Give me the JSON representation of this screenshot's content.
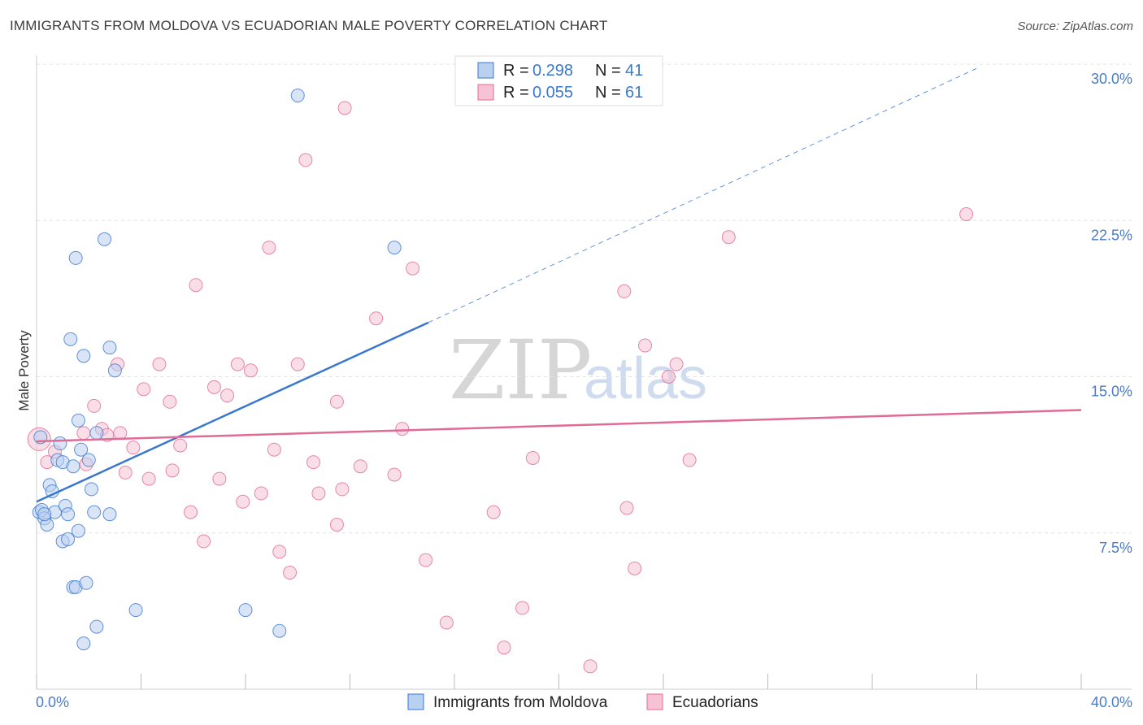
{
  "title": "IMMIGRANTS FROM MOLDOVA VS ECUADORIAN MALE POVERTY CORRELATION CHART",
  "source": "Source: ZipAtlas.com",
  "watermark": {
    "zip": "ZIP",
    "atlas": "atlas"
  },
  "colors": {
    "blue": "#3a78cf",
    "blue_fill": "#b9d0f1",
    "pink": "#e06b96",
    "pink_fill": "#f6c3d4",
    "grid": "#e2e2e2",
    "tick": "#4a7cc7"
  },
  "legend": {
    "items": [
      {
        "r_label": "R = ",
        "r_value": "0.298",
        "n_label": "N = ",
        "n_value": "41"
      },
      {
        "r_label": "R = ",
        "r_value": "0.055",
        "n_label": "N = ",
        "n_value": "61"
      }
    ]
  },
  "bottom_legend": [
    "Immigrants from Moldova",
    "Ecuadorians"
  ],
  "chart_data": {
    "type": "scatter",
    "title": "IMMIGRANTS FROM MOLDOVA VS ECUADORIAN MALE POVERTY CORRELATION CHART",
    "xlabel": "",
    "ylabel": "Male Poverty",
    "xlim": [
      0,
      40
    ],
    "ylim": [
      0,
      30.5
    ],
    "x_tick_labels": [
      "0.0%",
      "40.0%"
    ],
    "y_ticks": [
      7.5,
      15.0,
      22.5,
      30.0
    ],
    "y_tick_labels": [
      "7.5%",
      "15.0%",
      "22.5%",
      "30.0%"
    ],
    "series": [
      {
        "name": "Immigrants from Moldova",
        "color": "#3a78cf",
        "trend": {
          "x0": 0,
          "y0": 9.0,
          "x1": 15.0,
          "y1": 17.6,
          "dash_x1": 36.0,
          "dash_y1": 29.8
        },
        "points": [
          [
            0.1,
            8.5
          ],
          [
            0.2,
            8.6
          ],
          [
            0.3,
            8.2
          ],
          [
            0.4,
            7.9
          ],
          [
            0.5,
            9.8
          ],
          [
            0.6,
            9.5
          ],
          [
            0.7,
            8.5
          ],
          [
            0.8,
            11.0
          ],
          [
            0.9,
            11.8
          ],
          [
            1.0,
            7.1
          ],
          [
            1.0,
            10.9
          ],
          [
            1.1,
            8.8
          ],
          [
            1.2,
            8.4
          ],
          [
            1.2,
            7.2
          ],
          [
            1.3,
            16.8
          ],
          [
            1.4,
            10.7
          ],
          [
            1.5,
            20.7
          ],
          [
            1.6,
            12.9
          ],
          [
            1.4,
            4.9
          ],
          [
            1.5,
            4.9
          ],
          [
            1.6,
            7.6
          ],
          [
            1.7,
            11.5
          ],
          [
            1.8,
            16.0
          ],
          [
            1.8,
            2.2
          ],
          [
            1.9,
            5.1
          ],
          [
            2.0,
            11.0
          ],
          [
            2.1,
            9.6
          ],
          [
            2.2,
            8.5
          ],
          [
            2.3,
            12.3
          ],
          [
            2.3,
            3.0
          ],
          [
            2.6,
            21.6
          ],
          [
            2.8,
            16.4
          ],
          [
            2.8,
            8.4
          ],
          [
            3.0,
            15.3
          ],
          [
            3.8,
            3.8
          ],
          [
            8.0,
            3.8
          ],
          [
            9.3,
            2.8
          ],
          [
            10.0,
            28.5
          ],
          [
            13.7,
            21.2
          ],
          [
            0.15,
            12.1
          ],
          [
            0.3,
            8.4
          ]
        ]
      },
      {
        "name": "Ecuadorians",
        "color": "#e06b96",
        "trend": {
          "x0": 0,
          "y0": 11.9,
          "x1": 40,
          "y1": 13.4
        },
        "points": [
          [
            0.1,
            12.0
          ],
          [
            0.4,
            10.9
          ],
          [
            0.7,
            11.4
          ],
          [
            1.8,
            12.3
          ],
          [
            1.9,
            10.8
          ],
          [
            2.2,
            13.6
          ],
          [
            2.5,
            12.5
          ],
          [
            2.7,
            12.2
          ],
          [
            3.1,
            15.6
          ],
          [
            3.2,
            12.3
          ],
          [
            3.4,
            10.4
          ],
          [
            3.7,
            11.6
          ],
          [
            4.1,
            14.4
          ],
          [
            4.3,
            10.1
          ],
          [
            4.7,
            15.6
          ],
          [
            5.1,
            13.8
          ],
          [
            5.2,
            10.5
          ],
          [
            5.5,
            11.7
          ],
          [
            5.9,
            8.5
          ],
          [
            6.1,
            19.4
          ],
          [
            6.4,
            7.1
          ],
          [
            6.8,
            14.5
          ],
          [
            7.0,
            10.1
          ],
          [
            7.3,
            14.1
          ],
          [
            7.7,
            15.6
          ],
          [
            7.9,
            9.0
          ],
          [
            8.2,
            15.3
          ],
          [
            8.6,
            9.4
          ],
          [
            8.9,
            21.2
          ],
          [
            9.1,
            11.5
          ],
          [
            9.3,
            6.6
          ],
          [
            9.7,
            5.6
          ],
          [
            10.0,
            15.6
          ],
          [
            10.3,
            25.4
          ],
          [
            10.6,
            10.9
          ],
          [
            10.8,
            9.4
          ],
          [
            11.5,
            7.9
          ],
          [
            11.7,
            9.6
          ],
          [
            11.8,
            27.9
          ],
          [
            12.4,
            10.7
          ],
          [
            13.0,
            17.8
          ],
          [
            13.7,
            10.3
          ],
          [
            14.0,
            12.5
          ],
          [
            14.4,
            20.2
          ],
          [
            14.9,
            6.2
          ],
          [
            15.7,
            3.2
          ],
          [
            17.5,
            8.5
          ],
          [
            17.9,
            2.0
          ],
          [
            18.6,
            3.9
          ],
          [
            19.0,
            11.1
          ],
          [
            21.2,
            1.1
          ],
          [
            22.5,
            19.1
          ],
          [
            22.6,
            8.7
          ],
          [
            22.9,
            5.8
          ],
          [
            23.3,
            16.5
          ],
          [
            24.2,
            15.0
          ],
          [
            24.5,
            15.6
          ],
          [
            25.0,
            11.0
          ],
          [
            26.5,
            21.7
          ],
          [
            35.6,
            22.8
          ],
          [
            11.5,
            13.8
          ]
        ]
      }
    ]
  }
}
